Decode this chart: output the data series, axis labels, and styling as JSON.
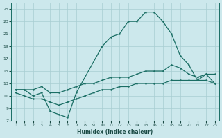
{
  "xlabel": "Humidex (Indice chaleur)",
  "bg_color": "#cce8ec",
  "grid_color": "#a8cdd2",
  "line_color": "#1a6e64",
  "xlim": [
    -0.5,
    23.5
  ],
  "ylim": [
    7,
    26
  ],
  "yticks": [
    7,
    9,
    11,
    13,
    15,
    17,
    19,
    21,
    23,
    25
  ],
  "xticks": [
    0,
    1,
    2,
    3,
    4,
    5,
    6,
    7,
    8,
    9,
    10,
    11,
    12,
    13,
    14,
    15,
    16,
    17,
    18,
    19,
    20,
    21,
    22,
    23
  ],
  "line1_x": [
    0,
    1,
    2,
    3,
    4,
    5,
    6,
    7,
    10,
    11,
    12,
    13,
    14,
    15,
    16,
    17,
    18,
    19,
    20,
    21,
    22,
    23
  ],
  "line1_y": [
    12.0,
    12.0,
    11.0,
    11.5,
    8.5,
    8.0,
    7.5,
    11.5,
    19.0,
    20.5,
    21.0,
    23.0,
    23.0,
    24.5,
    24.5,
    23.0,
    21.0,
    17.5,
    16.0,
    13.5,
    14.5,
    13.0
  ],
  "line2_x": [
    0,
    1,
    2,
    3,
    4,
    5,
    6,
    7,
    8,
    9,
    10,
    11,
    12,
    13,
    14,
    15,
    16,
    17,
    18,
    19,
    20,
    21,
    22,
    23
  ],
  "line2_y": [
    12.0,
    12.0,
    12.0,
    12.5,
    11.5,
    11.5,
    12.0,
    12.5,
    13.0,
    13.0,
    13.5,
    14.0,
    14.0,
    14.0,
    14.5,
    15.0,
    15.0,
    15.0,
    16.0,
    15.5,
    14.5,
    14.0,
    14.5,
    14.5
  ],
  "line3_x": [
    0,
    1,
    2,
    3,
    4,
    5,
    6,
    7,
    8,
    9,
    10,
    11,
    12,
    13,
    14,
    15,
    16,
    17,
    18,
    19,
    20,
    21,
    22,
    23
  ],
  "line3_y": [
    11.5,
    11.0,
    10.5,
    10.5,
    10.0,
    9.5,
    10.0,
    10.5,
    11.0,
    11.5,
    12.0,
    12.0,
    12.5,
    12.5,
    13.0,
    13.0,
    13.0,
    13.0,
    13.5,
    13.5,
    13.5,
    13.5,
    13.5,
    13.0
  ]
}
